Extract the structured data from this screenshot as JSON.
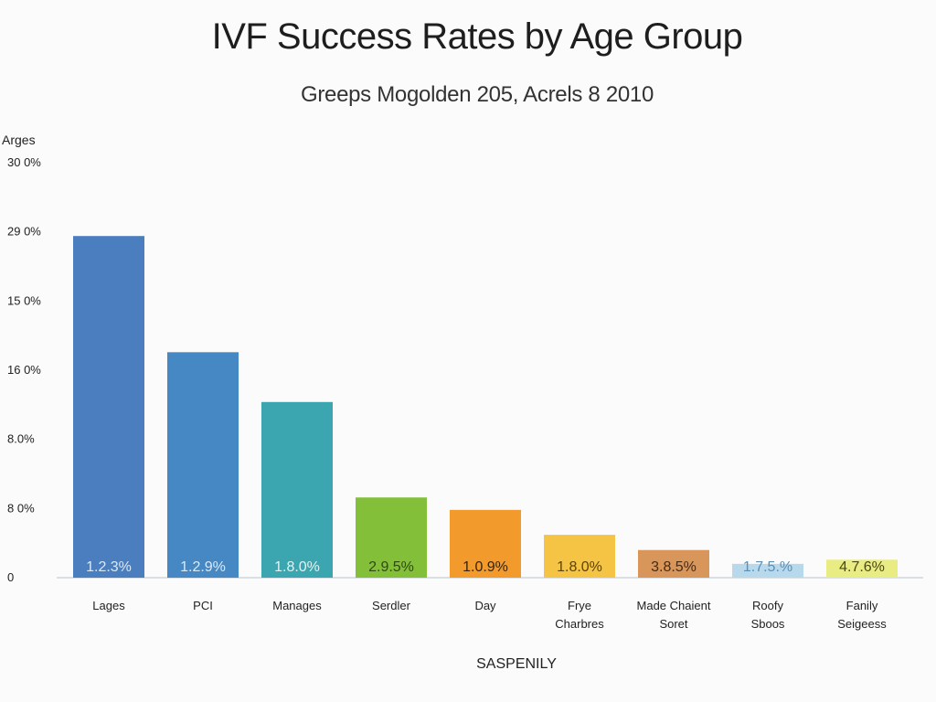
{
  "chart_data": {
    "type": "bar",
    "title": "IVF Success Rates by Age Group",
    "subtitle": "Greeps Mogolden 205, Acrels 8 2010",
    "ylabel": "Arges",
    "xlabel": "SASPENILY",
    "yticks": [
      "0",
      "8 0%",
      "8.0%",
      "16 0%",
      "15 0%",
      "29 0%",
      "30 0%"
    ],
    "ylim": [
      0,
      30
    ],
    "grid": false,
    "legend": "none",
    "categories": [
      [
        "Lages"
      ],
      [
        "PCI"
      ],
      [
        "Manages"
      ],
      [
        "Serdler"
      ],
      [
        "Day"
      ],
      [
        "Frye",
        "Charbres"
      ],
      [
        "Made Chaient",
        "Soret"
      ],
      [
        "Roofy",
        "Sboos"
      ],
      [
        "Fanily",
        "Seigeess"
      ]
    ],
    "values": [
      24.7,
      16.3,
      12.7,
      5.8,
      4.9,
      3.1,
      2.0,
      1.0,
      1.3
    ],
    "data_labels": [
      "1.2.3%",
      "1.2.9%",
      "1.8.0%",
      "2.9.5%",
      "1.0.9%",
      "1.8.0%",
      "3.8.5%",
      "1.7.5.%",
      "4.7.6%"
    ],
    "colors": [
      "#4a7ebf",
      "#4688c4",
      "#3ba6b0",
      "#84bf3a",
      "#f29a2c",
      "#f5c445",
      "#d9965a",
      "#b8d8ec",
      "#e8ec82"
    ],
    "label_colors": [
      "#d9e8f7",
      "#dbe9f6",
      "#dff3f3",
      "#2f4a10",
      "#3a2408",
      "#5a4305",
      "#4a2a10",
      "#5c8fb3",
      "#4a4a10"
    ]
  }
}
